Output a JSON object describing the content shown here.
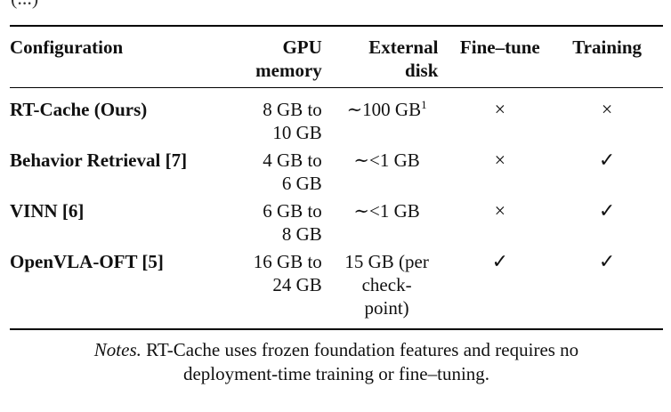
{
  "caption_clipped": "(...)",
  "table": {
    "headers": {
      "configuration": "Configuration",
      "gpu_memory_line1": "GPU",
      "gpu_memory_line2": "memory",
      "external_disk_line1": "External",
      "external_disk_line2": "disk",
      "fine_tune": "Fine–tune",
      "training": "Training"
    },
    "rows": [
      {
        "configuration": "RT-Cache (Ours)",
        "gpu_line1": "8 GB to",
        "gpu_line2": "10 GB",
        "disk_line1": "∼100 GB",
        "disk_footnote": "1",
        "disk_line2": "",
        "disk_line3": "",
        "fine_tune": "×",
        "training": "×"
      },
      {
        "configuration": "Behavior Retrieval [7]",
        "gpu_line1": "4 GB to",
        "gpu_line2": "6 GB",
        "disk_line1": "∼<1 GB",
        "disk_footnote": "",
        "disk_line2": "",
        "disk_line3": "",
        "fine_tune": "×",
        "training": "✓"
      },
      {
        "configuration": "VINN [6]",
        "gpu_line1": "6 GB to",
        "gpu_line2": "8 GB",
        "disk_line1": "∼<1 GB",
        "disk_footnote": "",
        "disk_line2": "",
        "disk_line3": "",
        "fine_tune": "×",
        "training": "✓"
      },
      {
        "configuration": "OpenVLA-OFT [5]",
        "gpu_line1": "16 GB to",
        "gpu_line2": "24 GB",
        "disk_line1": "15 GB (per",
        "disk_footnote": "",
        "disk_line2": "check-",
        "disk_line3": "point)",
        "fine_tune": "✓",
        "training": "✓"
      }
    ]
  },
  "notes": {
    "lead": "Notes.",
    "text_line1": " RT-Cache uses frozen foundation features and requires no",
    "text_line2": "deployment-time training or fine–tuning."
  }
}
